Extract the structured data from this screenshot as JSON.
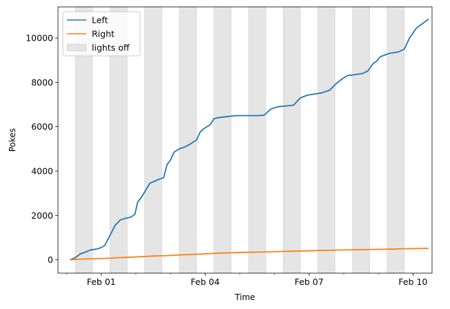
{
  "chart_data": {
    "type": "line",
    "xlabel": "Time",
    "ylabel": "Pokes",
    "x_unit": "days",
    "xlim": [
      -1.25,
      9.55
    ],
    "ylim": [
      -600,
      11400
    ],
    "x_ticks": [
      {
        "value": 0,
        "label": "Feb 01"
      },
      {
        "value": 3,
        "label": "Feb 04"
      },
      {
        "value": 6,
        "label": "Feb 07"
      },
      {
        "value": 9,
        "label": "Feb 10"
      }
    ],
    "x_minor_ticks": [
      -1,
      1,
      2,
      4,
      5,
      7,
      8
    ],
    "y_ticks": [
      0,
      2000,
      4000,
      6000,
      8000,
      10000
    ],
    "legend": {
      "position": "top-left",
      "entries": [
        {
          "label": "Left",
          "kind": "line",
          "color": "#1f77b4"
        },
        {
          "label": "Right",
          "kind": "line",
          "color": "#ff7f0e"
        },
        {
          "label": "lights off",
          "kind": "patch",
          "color": "#e5e5e5"
        }
      ]
    },
    "shaded_regions": [
      [
        -0.75,
        -0.25
      ],
      [
        0.25,
        0.75
      ],
      [
        1.25,
        1.75
      ],
      [
        2.25,
        2.75
      ],
      [
        3.25,
        3.75
      ],
      [
        4.25,
        4.75
      ],
      [
        5.25,
        5.75
      ],
      [
        6.25,
        6.75
      ],
      [
        7.25,
        7.75
      ],
      [
        8.25,
        8.75
      ]
    ],
    "series": [
      {
        "name": "Left",
        "color": "#1f77b4",
        "x": [
          -0.9,
          -0.75,
          -0.6,
          -0.45,
          -0.3,
          -0.15,
          0.0,
          0.1,
          0.25,
          0.4,
          0.55,
          0.7,
          0.85,
          0.97,
          1.05,
          1.15,
          1.25,
          1.4,
          1.55,
          1.7,
          1.8,
          1.9,
          2.0,
          2.1,
          2.25,
          2.4,
          2.55,
          2.75,
          2.85,
          2.95,
          3.05,
          3.15,
          3.25,
          3.35,
          3.6,
          3.9,
          4.2,
          4.35,
          4.5,
          4.7,
          4.9,
          5.1,
          5.3,
          5.55,
          5.75,
          5.95,
          6.15,
          6.35,
          6.6,
          6.75,
          6.95,
          7.1,
          7.3,
          7.55,
          7.7,
          7.85,
          7.95,
          8.05,
          8.3,
          8.6,
          8.75,
          8.9,
          9.1,
          9.45
        ],
        "y": [
          0,
          100,
          270,
          350,
          450,
          480,
          550,
          650,
          1100,
          1550,
          1800,
          1870,
          1920,
          2050,
          2600,
          2800,
          3050,
          3450,
          3550,
          3650,
          3700,
          4300,
          4500,
          4850,
          5000,
          5080,
          5200,
          5400,
          5750,
          5900,
          6000,
          6100,
          6350,
          6400,
          6450,
          6500,
          6500,
          6500,
          6500,
          6520,
          6800,
          6900,
          6930,
          6970,
          7300,
          7420,
          7470,
          7520,
          7650,
          7900,
          8150,
          8300,
          8340,
          8400,
          8520,
          8850,
          8950,
          9150,
          9300,
          9380,
          9500,
          10000,
          10450,
          10850
        ]
      },
      {
        "name": "Right",
        "color": "#ff7f0e",
        "x": [
          -0.9,
          -0.6,
          -0.2,
          0.25,
          0.5,
          0.9,
          1.25,
          1.5,
          1.9,
          2.25,
          2.6,
          2.9,
          3.25,
          3.6,
          3.9,
          4.25,
          4.6,
          4.9,
          5.25,
          5.6,
          5.9,
          6.25,
          6.6,
          6.9,
          7.25,
          7.6,
          7.9,
          8.25,
          8.6,
          8.9,
          9.45
        ],
        "y": [
          0,
          30,
          50,
          70,
          100,
          120,
          150,
          170,
          190,
          220,
          240,
          260,
          290,
          310,
          325,
          340,
          350,
          360,
          380,
          390,
          400,
          420,
          430,
          440,
          450,
          460,
          470,
          480,
          490,
          505,
          520
        ]
      }
    ]
  }
}
